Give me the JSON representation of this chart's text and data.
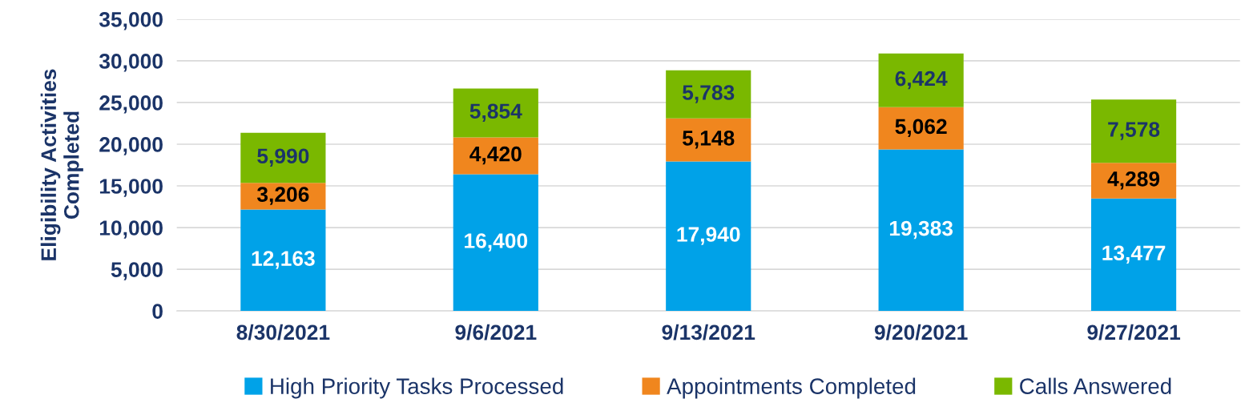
{
  "chart_data": {
    "type": "bar",
    "stacked": true,
    "ylabel": "Eligibility Activities\nCompleted",
    "categories": [
      "8/30/2021",
      "9/6/2021",
      "9/13/2021",
      "9/20/2021",
      "9/27/2021"
    ],
    "series": [
      {
        "name": "High Priority Tasks Processed",
        "color": "#00a2e8",
        "values": [
          12163,
          16400,
          17940,
          19383,
          13477
        ],
        "value_labels": [
          "12,163",
          "16,400",
          "17,940",
          "19,383",
          "13,477"
        ]
      },
      {
        "name": "Appointments Completed",
        "color": "#f0861e",
        "values": [
          3206,
          4420,
          5148,
          5062,
          4289
        ],
        "value_labels": [
          "3,206",
          "4,420",
          "5,148",
          "5,062",
          "4,289"
        ]
      },
      {
        "name": "Calls Answered",
        "color": "#7ab800",
        "values": [
          5990,
          5854,
          5783,
          6424,
          7578
        ],
        "value_labels": [
          "5,990",
          "5,854",
          "5,783",
          "6,424",
          "7,578"
        ]
      }
    ],
    "ylim": [
      0,
      35000
    ],
    "yticks": [
      {
        "value": 0,
        "label": "0"
      },
      {
        "value": 5000,
        "label": "5,000"
      },
      {
        "value": 10000,
        "label": "10,000"
      },
      {
        "value": 15000,
        "label": "15,000"
      },
      {
        "value": 20000,
        "label": "20,000"
      },
      {
        "value": 25000,
        "label": "25,000"
      },
      {
        "value": 30000,
        "label": "30,000"
      },
      {
        "value": 35000,
        "label": "35,000"
      }
    ],
    "grid": "y",
    "legend": "bottom"
  }
}
